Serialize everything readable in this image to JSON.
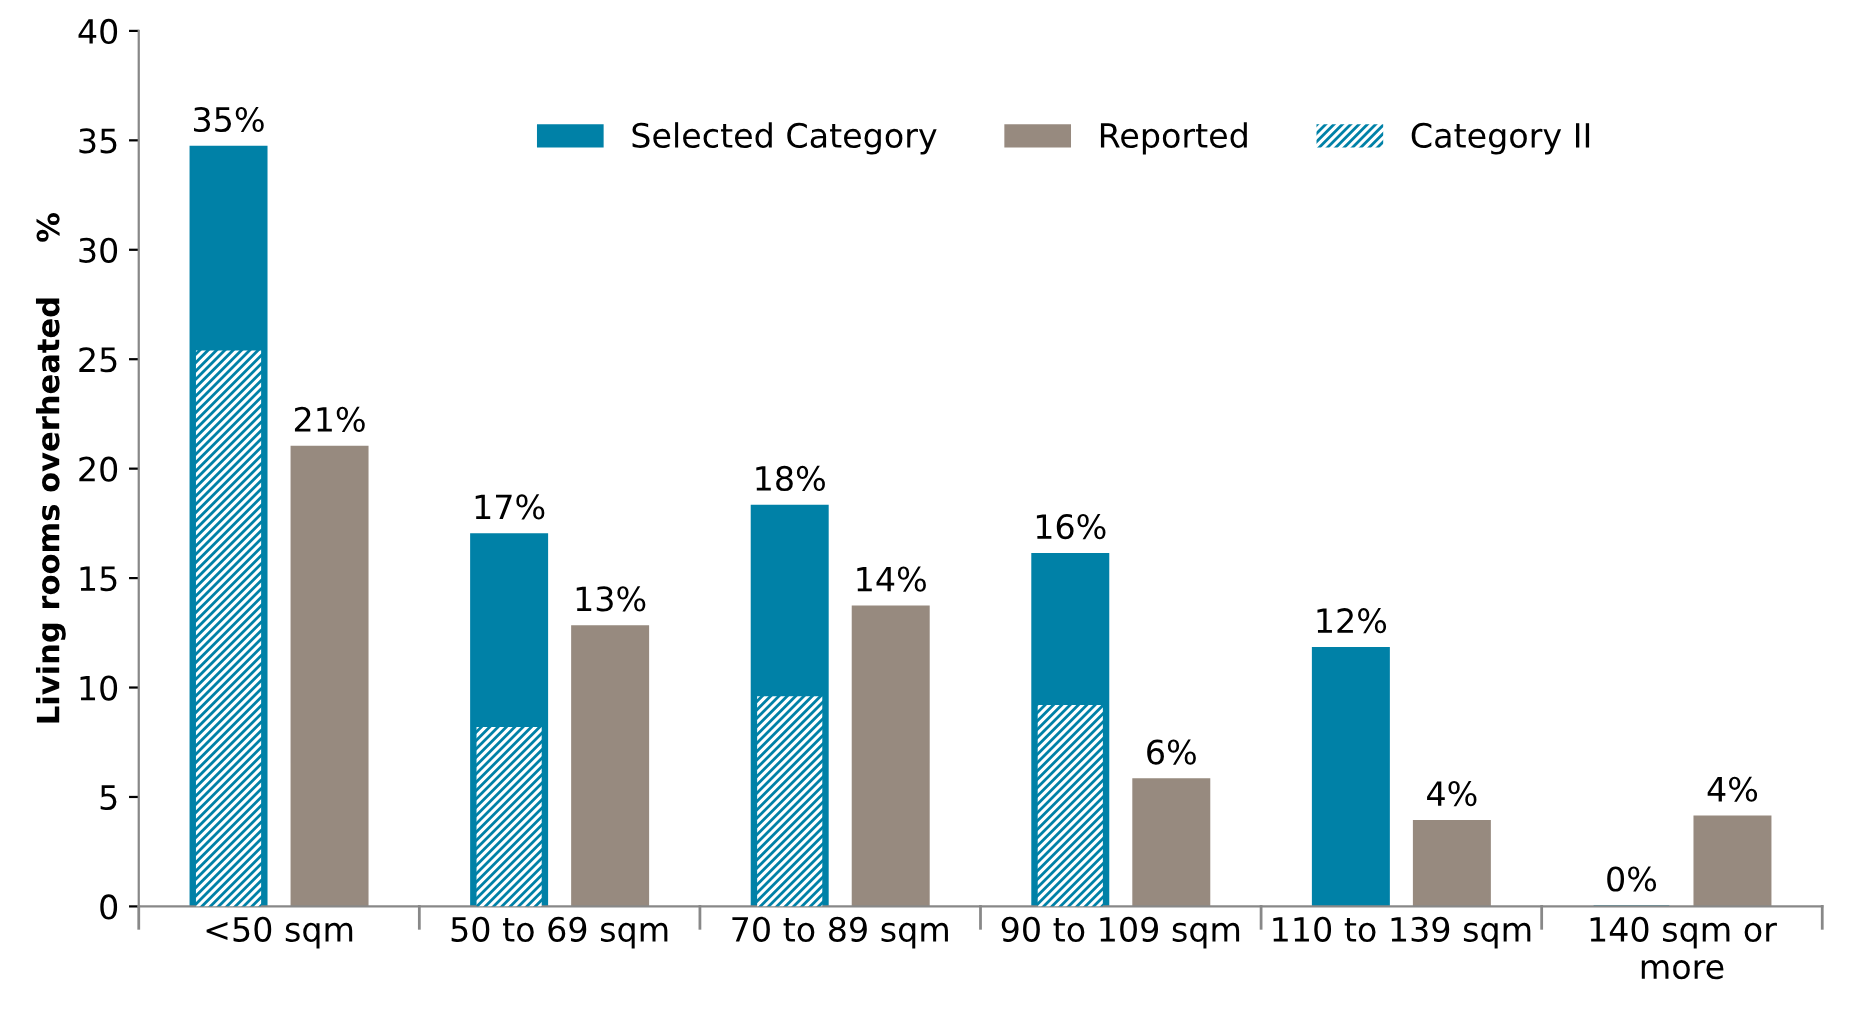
{
  "chart_data": {
    "type": "bar",
    "ylabel": "Living rooms overheated     %",
    "categories": [
      "<50 sqm",
      "50 to 69 sqm",
      "70 to 89 sqm",
      "90 to 109 sqm",
      "110 to 139 sqm",
      "140 sqm or\nmore"
    ],
    "series": [
      {
        "name": "Selected Category",
        "color": "#0081a7",
        "values": [
          34.7,
          17.0,
          18.3,
          16.1,
          11.8,
          0
        ],
        "value_labels": [
          "35%",
          "17%",
          "18%",
          "16%",
          "12%",
          "0%"
        ]
      },
      {
        "name": "Reported",
        "color": "#978a7f",
        "values": [
          21.0,
          12.8,
          13.7,
          5.8,
          3.9,
          4.1
        ],
        "value_labels": [
          "21%",
          "13%",
          "14%",
          "6%",
          "4%",
          "4%"
        ]
      },
      {
        "name": "Category II",
        "color": "#0081a7",
        "values": [
          25.4,
          8.2,
          9.6,
          9.2,
          null,
          null
        ]
      }
    ],
    "ylim": [
      0,
      40
    ],
    "yticks": [
      0,
      5,
      10,
      15,
      20,
      25,
      30,
      35,
      40
    ],
    "grid": false,
    "legend": "top"
  }
}
